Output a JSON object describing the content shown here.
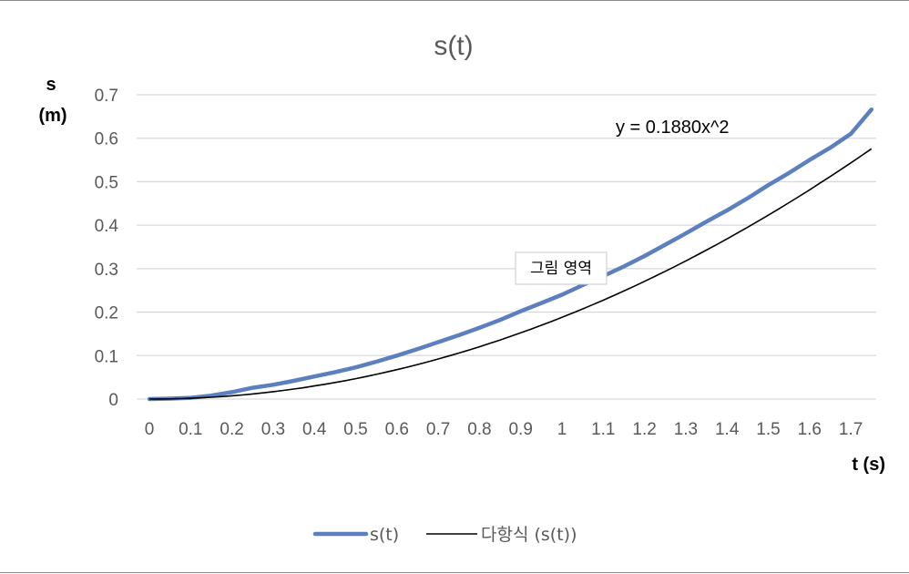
{
  "chart_data": {
    "type": "line",
    "title": "s(t)",
    "xlabel": "t (s)",
    "ylabel_line1": "s",
    "ylabel_line2": "(m)",
    "x_ticks": [
      "0",
      "0.1",
      "0.2",
      "0.3",
      "0.4",
      "0.5",
      "0.6",
      "0.7",
      "0.8",
      "0.9",
      "1",
      "1.1",
      "1.2",
      "1.3",
      "1.4",
      "1.5",
      "1.6",
      "1.7"
    ],
    "y_ticks": [
      "0",
      "0.1",
      "0.2",
      "0.3",
      "0.4",
      "0.5",
      "0.6",
      "0.7"
    ],
    "xlim": [
      0,
      1.77
    ],
    "ylim": [
      0,
      0.7
    ],
    "grid": "horizontal",
    "legend_position": "bottom",
    "series": [
      {
        "name": "s(t)",
        "color": "#5b7fbf",
        "x": [
          0,
          0.05,
          0.1,
          0.15,
          0.2,
          0.25,
          0.3,
          0.35,
          0.4,
          0.45,
          0.5,
          0.55,
          0.6,
          0.65,
          0.7,
          0.75,
          0.8,
          0.85,
          0.9,
          0.95,
          1.0,
          1.05,
          1.1,
          1.15,
          1.2,
          1.25,
          1.3,
          1.35,
          1.4,
          1.45,
          1.5,
          1.55,
          1.6,
          1.65,
          1.7,
          1.75
        ],
        "values": [
          0,
          0.001,
          0.003,
          0.008,
          0.016,
          0.026,
          0.033,
          0.042,
          0.052,
          0.062,
          0.073,
          0.086,
          0.1,
          0.115,
          0.131,
          0.147,
          0.164,
          0.182,
          0.202,
          0.221,
          0.24,
          0.262,
          0.283,
          0.305,
          0.329,
          0.355,
          0.381,
          0.408,
          0.434,
          0.462,
          0.492,
          0.52,
          0.55,
          0.578,
          0.61,
          0.666
        ]
      }
    ],
    "trendline": {
      "name": "다항식 (s(t))",
      "color": "#000000",
      "equation": "y = 0.1880x^2",
      "coefficient": 0.188,
      "x_start": 0,
      "x_end": 1.75
    },
    "tooltip_label": "그림 영역"
  }
}
